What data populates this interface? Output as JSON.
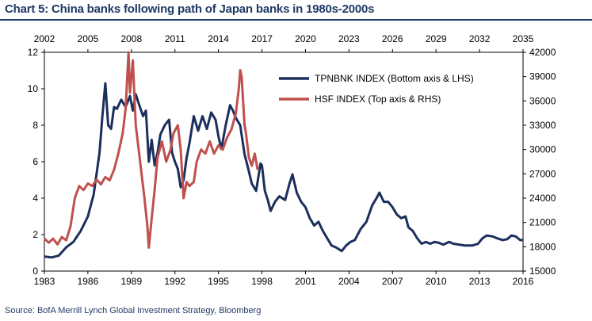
{
  "title": "Chart 5: China banks following path of Japan banks in 1980s-2000s",
  "source": "Source: BofA Merrill Lynch Global Investment Strategy, Bloomberg",
  "colors": {
    "title": "#1f3a66",
    "series_tpnbnk": "#1b2f5c",
    "series_hsf": "#c0504d",
    "axis": "#000000"
  },
  "chart_data": {
    "type": "line",
    "title": "",
    "grid": false,
    "legend_placement": "top-right",
    "axes": {
      "bottom": {
        "range": [
          1983,
          2016
        ],
        "ticks": [
          1983,
          1986,
          1989,
          1992,
          1995,
          1998,
          2001,
          2004,
          2007,
          2010,
          2013,
          2016
        ]
      },
      "top": {
        "range": [
          2002,
          2035
        ],
        "ticks": [
          2002,
          2005,
          2008,
          2011,
          2014,
          2017,
          2020,
          2023,
          2026,
          2029,
          2032,
          2035
        ]
      },
      "left": {
        "range": [
          0,
          12
        ],
        "ticks": [
          0,
          2,
          4,
          6,
          8,
          10,
          12
        ]
      },
      "right": {
        "range": [
          15000,
          42000
        ],
        "ticks": [
          15000,
          18000,
          21000,
          24000,
          27000,
          30000,
          33000,
          36000,
          39000,
          42000
        ]
      }
    },
    "series": [
      {
        "name": "TPNBNK INDEX (Bottom axis & LHS)",
        "x_axis": "bottom",
        "y_axis": "left",
        "color": "#1b2f5c",
        "points": [
          [
            1983.0,
            0.8
          ],
          [
            1983.5,
            0.75
          ],
          [
            1984.0,
            0.85
          ],
          [
            1984.5,
            1.3
          ],
          [
            1985.0,
            1.6
          ],
          [
            1985.5,
            2.2
          ],
          [
            1986.0,
            3.0
          ],
          [
            1986.4,
            4.2
          ],
          [
            1986.8,
            6.5
          ],
          [
            1987.0,
            8.5
          ],
          [
            1987.2,
            10.3
          ],
          [
            1987.4,
            8.0
          ],
          [
            1987.6,
            7.8
          ],
          [
            1987.8,
            9.0
          ],
          [
            1988.0,
            8.9
          ],
          [
            1988.3,
            9.4
          ],
          [
            1988.6,
            9.0
          ],
          [
            1988.9,
            9.6
          ],
          [
            1989.1,
            8.8
          ],
          [
            1989.3,
            9.7
          ],
          [
            1989.5,
            9.2
          ],
          [
            1989.8,
            8.5
          ],
          [
            1990.0,
            8.8
          ],
          [
            1990.2,
            6.0
          ],
          [
            1990.4,
            7.2
          ],
          [
            1990.6,
            5.8
          ],
          [
            1990.8,
            6.5
          ],
          [
            1991.0,
            7.5
          ],
          [
            1991.3,
            8.0
          ],
          [
            1991.6,
            8.3
          ],
          [
            1991.8,
            6.5
          ],
          [
            1992.0,
            6.0
          ],
          [
            1992.2,
            5.6
          ],
          [
            1992.4,
            4.6
          ],
          [
            1992.6,
            5.0
          ],
          [
            1992.8,
            6.2
          ],
          [
            1993.0,
            7.0
          ],
          [
            1993.3,
            8.5
          ],
          [
            1993.6,
            7.7
          ],
          [
            1993.9,
            8.5
          ],
          [
            1994.2,
            7.8
          ],
          [
            1994.5,
            8.7
          ],
          [
            1994.8,
            8.3
          ],
          [
            1995.0,
            7.4
          ],
          [
            1995.2,
            6.7
          ],
          [
            1995.5,
            8.0
          ],
          [
            1995.8,
            9.1
          ],
          [
            1996.0,
            8.8
          ],
          [
            1996.2,
            8.4
          ],
          [
            1996.5,
            8.0
          ],
          [
            1996.8,
            6.4
          ],
          [
            1997.0,
            5.8
          ],
          [
            1997.3,
            4.8
          ],
          [
            1997.6,
            4.4
          ],
          [
            1997.9,
            5.9
          ],
          [
            1998.0,
            5.8
          ],
          [
            1998.2,
            4.4
          ],
          [
            1998.4,
            3.9
          ],
          [
            1998.6,
            3.3
          ],
          [
            1998.9,
            3.8
          ],
          [
            1999.2,
            4.1
          ],
          [
            1999.6,
            3.9
          ],
          [
            1999.9,
            4.8
          ],
          [
            2000.1,
            5.3
          ],
          [
            2000.4,
            4.3
          ],
          [
            2000.7,
            3.8
          ],
          [
            2001.0,
            3.5
          ],
          [
            2001.3,
            2.9
          ],
          [
            2001.6,
            2.5
          ],
          [
            2001.9,
            2.7
          ],
          [
            2002.2,
            2.2
          ],
          [
            2002.5,
            1.8
          ],
          [
            2002.8,
            1.4
          ],
          [
            2003.1,
            1.3
          ],
          [
            2003.5,
            1.1
          ],
          [
            2003.8,
            1.4
          ],
          [
            2004.1,
            1.6
          ],
          [
            2004.4,
            1.7
          ],
          [
            2004.8,
            2.3
          ],
          [
            2005.2,
            2.7
          ],
          [
            2005.6,
            3.6
          ],
          [
            2005.9,
            4.0
          ],
          [
            2006.1,
            4.3
          ],
          [
            2006.4,
            3.8
          ],
          [
            2006.7,
            3.8
          ],
          [
            2007.0,
            3.5
          ],
          [
            2007.3,
            3.1
          ],
          [
            2007.6,
            2.9
          ],
          [
            2007.9,
            3.0
          ],
          [
            2008.1,
            2.4
          ],
          [
            2008.4,
            2.2
          ],
          [
            2008.7,
            1.8
          ],
          [
            2009.0,
            1.5
          ],
          [
            2009.3,
            1.6
          ],
          [
            2009.6,
            1.5
          ],
          [
            2009.9,
            1.6
          ],
          [
            2010.2,
            1.55
          ],
          [
            2010.5,
            1.45
          ],
          [
            2010.9,
            1.6
          ],
          [
            2011.2,
            1.5
          ],
          [
            2011.6,
            1.45
          ],
          [
            2012.0,
            1.4
          ],
          [
            2012.5,
            1.4
          ],
          [
            2012.9,
            1.5
          ],
          [
            2013.2,
            1.8
          ],
          [
            2013.5,
            1.95
          ],
          [
            2013.9,
            1.9
          ],
          [
            2014.2,
            1.8
          ],
          [
            2014.6,
            1.7
          ],
          [
            2014.9,
            1.75
          ],
          [
            2015.2,
            1.95
          ],
          [
            2015.5,
            1.9
          ],
          [
            2015.8,
            1.7
          ],
          [
            2016.0,
            1.7
          ]
        ]
      },
      {
        "name": "HSF INDEX (Top axis & RHS)",
        "x_axis": "top",
        "y_axis": "right",
        "color": "#c0504d",
        "points": [
          [
            2002.0,
            19000
          ],
          [
            2002.3,
            18500
          ],
          [
            2002.6,
            19000
          ],
          [
            2002.9,
            18300
          ],
          [
            2003.2,
            19200
          ],
          [
            2003.5,
            18800
          ],
          [
            2003.8,
            20500
          ],
          [
            2004.1,
            24000
          ],
          [
            2004.4,
            25500
          ],
          [
            2004.7,
            25000
          ],
          [
            2005.0,
            25800
          ],
          [
            2005.3,
            25500
          ],
          [
            2005.6,
            26300
          ],
          [
            2005.9,
            25700
          ],
          [
            2006.2,
            26600
          ],
          [
            2006.5,
            26200
          ],
          [
            2006.8,
            27500
          ],
          [
            2007.1,
            29500
          ],
          [
            2007.4,
            32000
          ],
          [
            2007.6,
            35000
          ],
          [
            2007.8,
            42000
          ],
          [
            2007.9,
            37000
          ],
          [
            2008.1,
            41000
          ],
          [
            2008.3,
            33000
          ],
          [
            2008.5,
            30000
          ],
          [
            2008.7,
            27000
          ],
          [
            2008.9,
            24000
          ],
          [
            2009.1,
            20500
          ],
          [
            2009.2,
            17900
          ],
          [
            2009.4,
            21500
          ],
          [
            2009.6,
            25000
          ],
          [
            2009.8,
            29000
          ],
          [
            2010.1,
            31000
          ],
          [
            2010.4,
            28500
          ],
          [
            2010.7,
            30000
          ],
          [
            2010.9,
            32000
          ],
          [
            2011.2,
            33000
          ],
          [
            2011.4,
            30000
          ],
          [
            2011.6,
            24000
          ],
          [
            2011.8,
            26000
          ],
          [
            2012.0,
            25500
          ],
          [
            2012.3,
            26000
          ],
          [
            2012.5,
            28500
          ],
          [
            2012.8,
            30000
          ],
          [
            2013.1,
            29500
          ],
          [
            2013.4,
            31000
          ],
          [
            2013.7,
            29500
          ],
          [
            2014.0,
            30500
          ],
          [
            2014.3,
            30000
          ],
          [
            2014.6,
            31500
          ],
          [
            2014.9,
            32500
          ],
          [
            2015.2,
            34500
          ],
          [
            2015.4,
            37500
          ],
          [
            2015.5,
            39800
          ],
          [
            2015.6,
            39000
          ],
          [
            2015.8,
            33000
          ],
          [
            2015.9,
            32000
          ],
          [
            2016.1,
            29000
          ],
          [
            2016.3,
            28000
          ],
          [
            2016.5,
            29500
          ],
          [
            2016.7,
            27500
          ]
        ]
      }
    ]
  }
}
